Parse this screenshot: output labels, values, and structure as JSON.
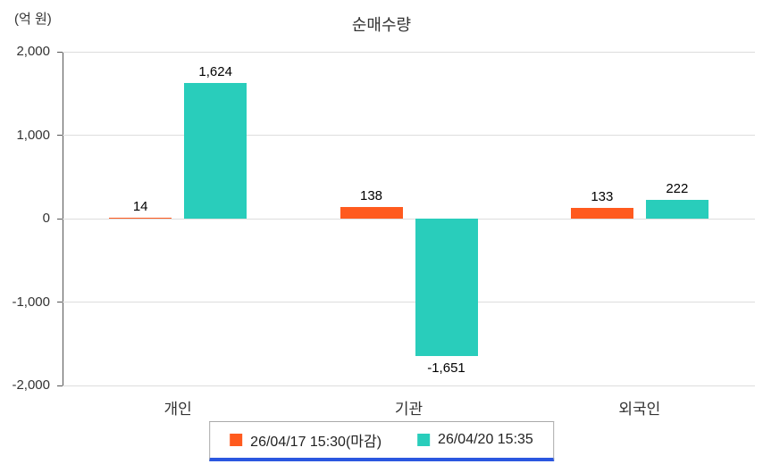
{
  "chart_data": {
    "type": "bar",
    "title": "순매수량",
    "ylabel": "(억 원)",
    "categories": [
      "개인",
      "기관",
      "외국인"
    ],
    "series": [
      {
        "name": "26/04/17 15:30(마감)",
        "color": "#FF5A1E",
        "values": [
          14,
          138,
          133
        ]
      },
      {
        "name": "26/04/20 15:35",
        "color": "#29CDBB",
        "values": [
          1624,
          -1651,
          222
        ]
      }
    ],
    "value_labels": [
      [
        "14",
        "138",
        "133"
      ],
      [
        "1,624",
        "-1,651",
        "222"
      ]
    ],
    "ylim": [
      -2000,
      2000
    ],
    "yticks": [
      2000,
      1000,
      0,
      -1000,
      -2000
    ],
    "ytick_labels": [
      "2,000",
      "1,000",
      "0",
      "-1,000",
      "-2,000"
    ],
    "grid": true,
    "legend_position": "bottom",
    "legend_accent_color": "#2B57E0"
  }
}
